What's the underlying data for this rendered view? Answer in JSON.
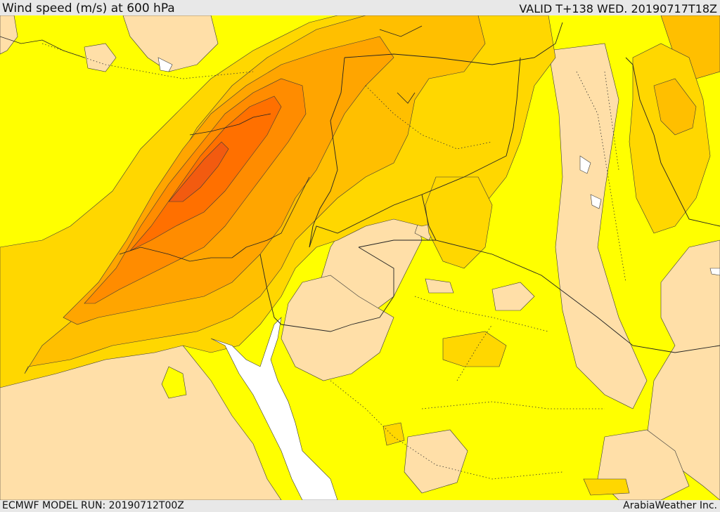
{
  "header": {
    "title": "Wind speed (m/s) at 600 hPa",
    "valid_time": "VALID T+138 WED. 20190717T18Z"
  },
  "footer": {
    "model_run": "ECMWF MODEL RUN: 20190712T00Z",
    "credit": "ArabiaWeather Inc."
  },
  "map": {
    "field": "wind speed",
    "level": "600 hPa",
    "colors": {
      "weak": "#ffdfa8",
      "base": "#ffff00",
      "band_2": "#ffd700",
      "band_3": "#ffbf00",
      "band_4": "#ffa500",
      "band_5": "#ff8c00",
      "band_6": "#ff7000",
      "band_7": "#f25b10",
      "sea_gulf": "#ffffff"
    }
  }
}
